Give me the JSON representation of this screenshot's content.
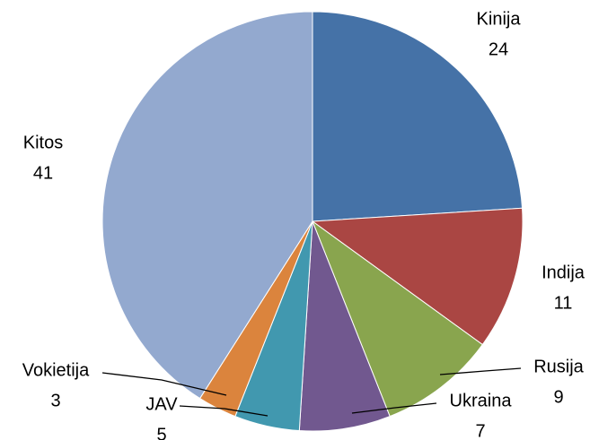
{
  "chart_data": {
    "type": "pie",
    "categories": [
      "Kinija",
      "Indija",
      "Rusija",
      "Ukraina",
      "JAV",
      "Vokietija",
      "Kitos"
    ],
    "values": [
      24,
      11,
      9,
      7,
      5,
      3,
      41
    ],
    "colors": [
      "#4572a7",
      "#aa4643",
      "#89a54e",
      "#71588f",
      "#4198af",
      "#db843d",
      "#93a9cf"
    ]
  }
}
